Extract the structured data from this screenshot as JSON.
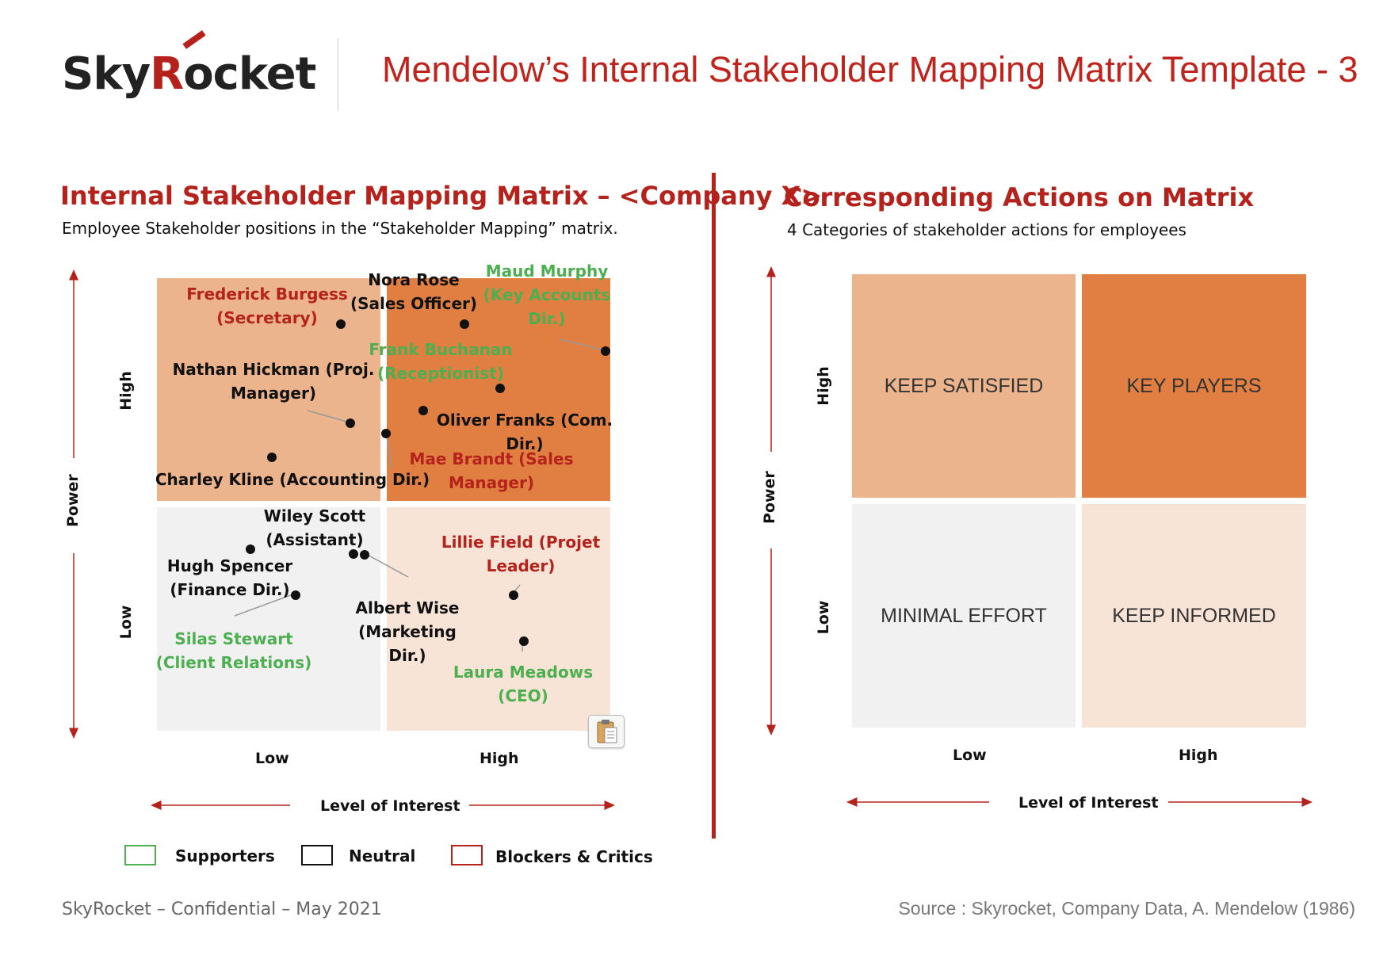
{
  "header": {
    "logo_text_before": "Sky",
    "logo_text_r": "R",
    "logo_text_after": "ocket",
    "title": "Mendelow’s Internal Stakeholder Mapping Matrix Template - 3"
  },
  "left_panel": {
    "title": "Internal Stakeholder Mapping Matrix – <Company X>",
    "subtitle": "Employee Stakeholder positions in the “Stakeholder Mapping” matrix.",
    "y_axis_label": "Power",
    "y_high": "High",
    "y_low": "Low",
    "x_axis_label": "Level of Interest",
    "x_low": "Low",
    "x_high": "High",
    "stakeholders": [
      {
        "name": "Frederick Burgess",
        "role": "(Secretary)",
        "category": "blocker"
      },
      {
        "name": "Nora Rose",
        "role": "(Sales Officer)",
        "category": "neutral"
      },
      {
        "name": "Maud Murphy",
        "role": "(Key Accounts",
        "role2": "Dir.)",
        "category": "supporter"
      },
      {
        "name": "Frank Buchanan",
        "role": "(Receptionist)",
        "category": "supporter"
      },
      {
        "name": "Nathan Hickman (Proj.",
        "role": "Manager)",
        "category": "neutral"
      },
      {
        "name": "Oliver Franks (Com.",
        "role": "Dir.)",
        "category": "neutral"
      },
      {
        "name": "Mae Brandt (Sales",
        "role": "Manager)",
        "category": "blocker"
      },
      {
        "name": "Charley Kline (Accounting Dir.)",
        "role": "",
        "category": "neutral"
      },
      {
        "name": "Wiley Scott",
        "role": "(Assistant)",
        "category": "neutral"
      },
      {
        "name": "Hugh Spencer",
        "role": "(Finance Dir.)",
        "category": "neutral"
      },
      {
        "name": "Lillie Field (Projet",
        "role": "Leader)",
        "category": "blocker"
      },
      {
        "name": "Albert Wise",
        "role": "(Marketing",
        "role2": "Dir.)",
        "category": "neutral"
      },
      {
        "name": "Silas Stewart",
        "role": "(Client Relations)",
        "category": "supporter"
      },
      {
        "name": "Laura Meadows",
        "role": "(CEO)",
        "category": "supporter"
      }
    ],
    "legend": [
      {
        "label": "Supporters",
        "color": "#4caf50"
      },
      {
        "label": "Neutral",
        "color": "#111111"
      },
      {
        "label": "Blockers & Critics",
        "color": "#b5221c"
      }
    ]
  },
  "right_panel": {
    "title": "Corresponding Actions on Matrix",
    "subtitle": "4 Categories of stakeholder actions for employees",
    "y_axis_label": "Power",
    "y_high": "High",
    "y_low": "Low",
    "x_axis_label": "Level of Interest",
    "x_low": "Low",
    "x_high": "High",
    "quadrants": {
      "keep_satisfied": "KEEP SATISFIED",
      "key_players": "KEY PLAYERS",
      "minimal_effort": "MINIMAL EFFORT",
      "keep_informed": "KEEP INFORMED"
    }
  },
  "colors": {
    "accent_red": "#b5221c",
    "keep_satisfied": "#ecb48c",
    "key_players": "#e07f41",
    "minimal_effort": "#f1f1f1",
    "keep_informed": "#f8e3d7",
    "supporter_green": "#4caf50"
  },
  "footer": {
    "left": "SkyRocket – Confidential – May 2021",
    "right": "Source : Skyrocket, Company Data, A. Mendelow (1986)"
  }
}
